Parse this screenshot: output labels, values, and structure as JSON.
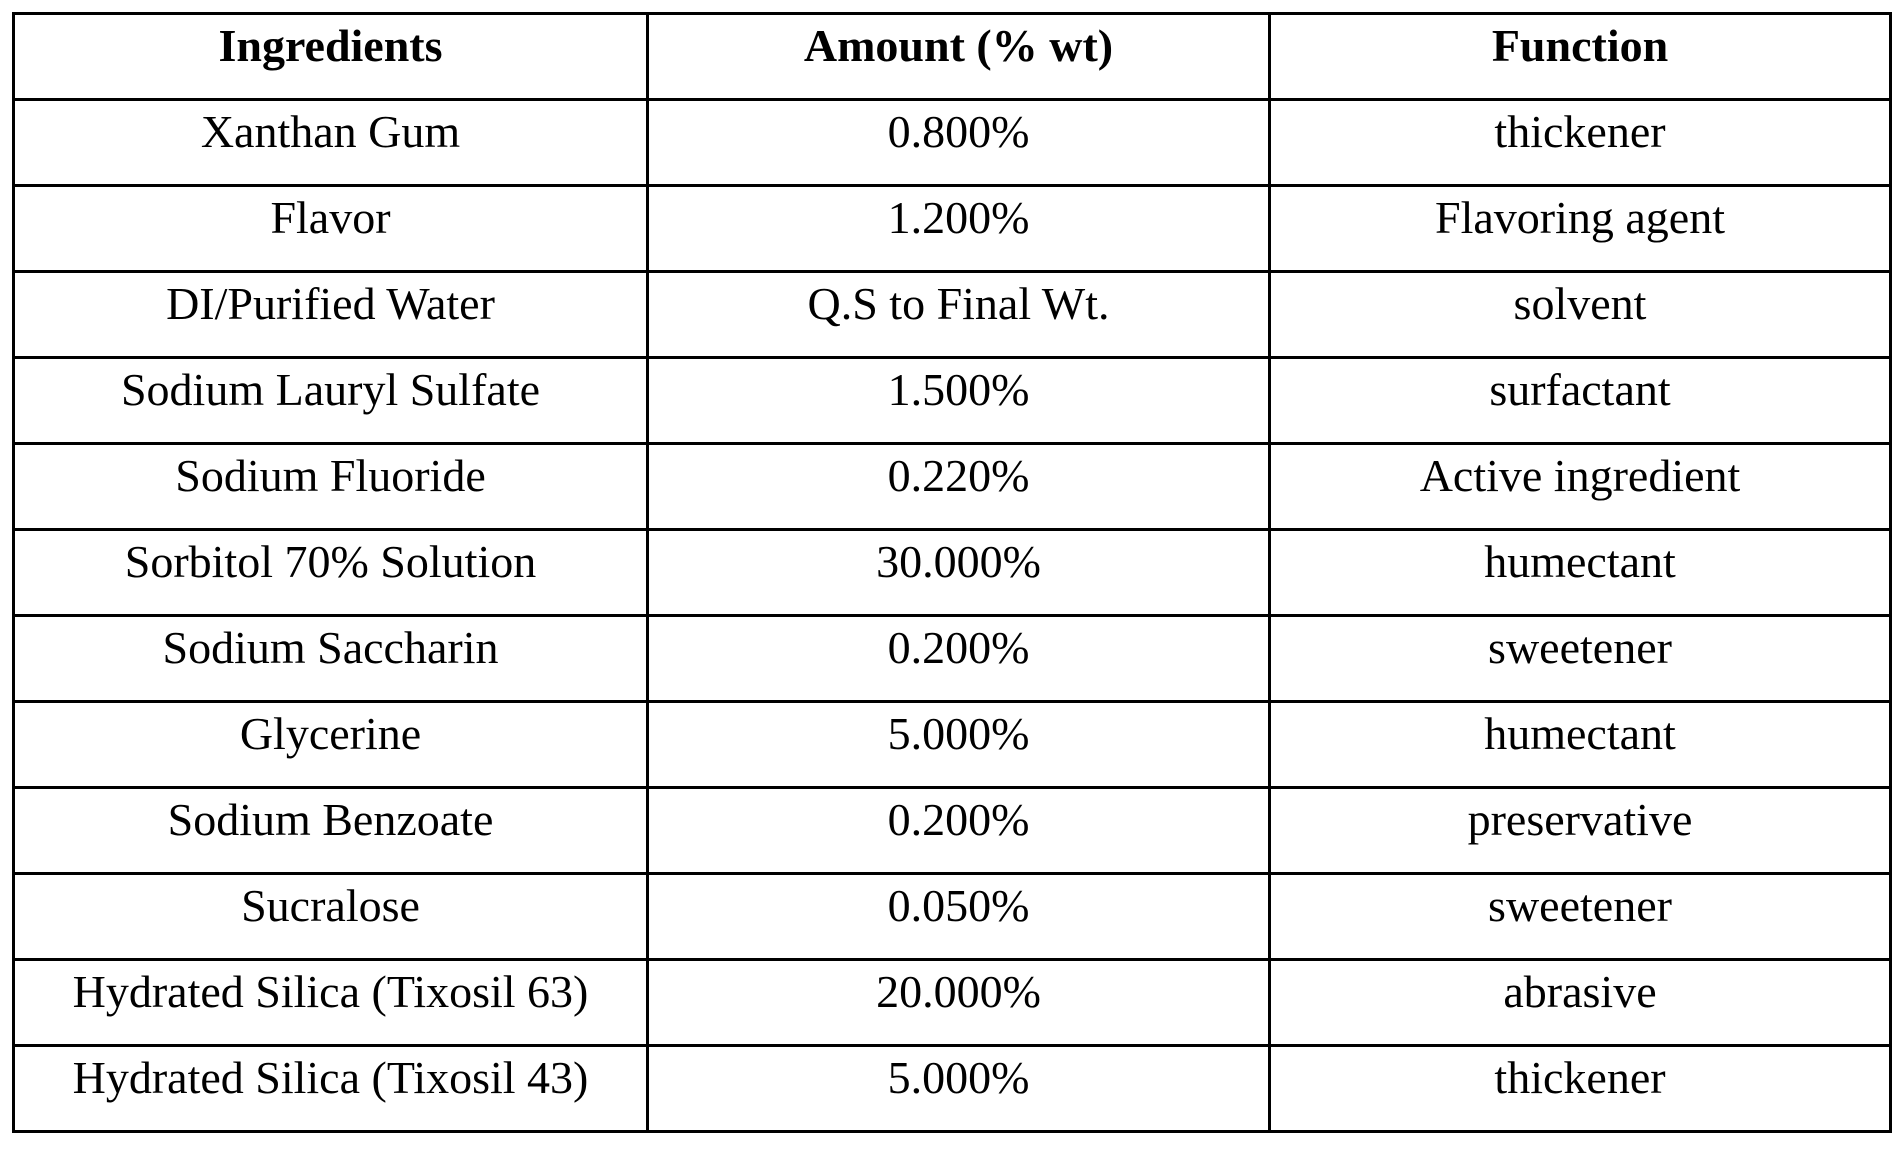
{
  "table": {
    "headers": [
      "Ingredients",
      "Amount (% wt)",
      "Function"
    ],
    "rows": [
      [
        "Xanthan Gum",
        "0.800%",
        "thickener"
      ],
      [
        "Flavor",
        "1.200%",
        "Flavoring agent"
      ],
      [
        "DI/Purified Water",
        "Q.S to Final Wt.",
        "solvent"
      ],
      [
        "Sodium Lauryl Sulfate",
        "1.500%",
        "surfactant"
      ],
      [
        "Sodium Fluoride",
        "0.220%",
        "Active ingredient"
      ],
      [
        "Sorbitol 70% Solution",
        "30.000%",
        "humectant"
      ],
      [
        "Sodium Saccharin",
        "0.200%",
        "sweetener"
      ],
      [
        "Glycerine",
        "5.000%",
        "humectant"
      ],
      [
        "Sodium Benzoate",
        "0.200%",
        "preservative"
      ],
      [
        "Sucralose",
        "0.050%",
        "sweetener"
      ],
      [
        "Hydrated Silica (Tixosil 63)",
        "20.000%",
        "abrasive"
      ],
      [
        "Hydrated Silica (Tixosil 43)",
        "5.000%",
        "thickener"
      ]
    ]
  }
}
